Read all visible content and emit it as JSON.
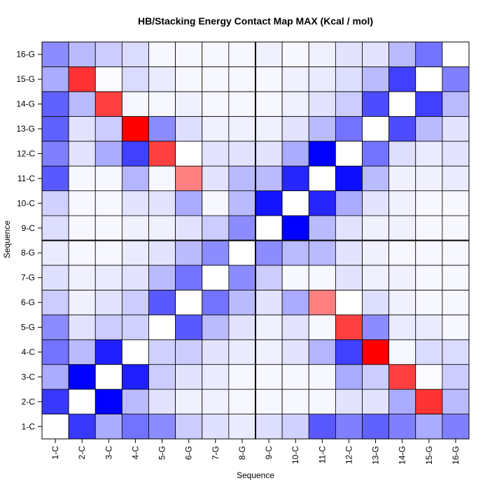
{
  "chart_data": {
    "type": "heatmap",
    "title": "HB/Stacking Energy Contact Map MAX (Kcal / mol)",
    "xlabel": "Sequence",
    "ylabel": "Sequence",
    "x_categories": [
      "1-C",
      "2-C",
      "3-C",
      "4-C",
      "5-G",
      "6-G",
      "7-G",
      "8-G",
      "9-C",
      "10-C",
      "11-C",
      "12-C",
      "13-G",
      "14-G",
      "15-G",
      "16-G"
    ],
    "y_categories": [
      "1-C",
      "2-C",
      "3-C",
      "4-C",
      "5-G",
      "6-G",
      "7-G",
      "8-G",
      "9-C",
      "10-C",
      "11-C",
      "12-C",
      "13-G",
      "14-G",
      "15-G",
      "16-G"
    ],
    "color_scale": {
      "negative": "#0000ff",
      "zero": "#ffffff",
      "positive": "#ff0000"
    },
    "value_range": [
      -1,
      1
    ],
    "grid_dividers_after": [
      8
    ],
    "values": [
      [
        0,
        -0.78,
        -0.33,
        -0.55,
        -0.45,
        -0.2,
        -0.12,
        -0.08,
        -0.13,
        -0.18,
        -0.65,
        -0.5,
        -0.62,
        -0.5,
        -0.33,
        -0.5
      ],
      [
        -0.78,
        0,
        -1.0,
        -0.27,
        -0.11,
        -0.06,
        -0.06,
        -0.03,
        -0.03,
        -0.03,
        -0.03,
        -0.11,
        -0.11,
        -0.33,
        0.8,
        -0.27
      ],
      [
        -0.33,
        -1.0,
        0,
        -0.88,
        -0.2,
        -0.11,
        -0.08,
        -0.03,
        -0.03,
        -0.03,
        -0.03,
        -0.33,
        -0.2,
        0.75,
        -0.02,
        -0.2
      ],
      [
        -0.55,
        -0.27,
        -0.88,
        0,
        -0.18,
        -0.2,
        -0.11,
        -0.08,
        -0.06,
        -0.11,
        -0.29,
        -0.75,
        1.0,
        -0.03,
        -0.14,
        -0.14
      ],
      [
        -0.45,
        -0.11,
        -0.2,
        -0.18,
        0,
        -0.65,
        -0.27,
        -0.11,
        -0.06,
        -0.11,
        -0.03,
        0.75,
        -0.45,
        -0.08,
        -0.08,
        -0.03
      ],
      [
        -0.2,
        -0.06,
        -0.11,
        -0.2,
        -0.65,
        0,
        -0.55,
        -0.27,
        -0.11,
        -0.33,
        0.5,
        0,
        -0.13,
        -0.06,
        -0.03,
        -0.03
      ],
      [
        -0.12,
        -0.06,
        -0.08,
        -0.11,
        -0.27,
        -0.55,
        0,
        -0.45,
        -0.2,
        -0.03,
        -0.03,
        -0.11,
        -0.06,
        -0.06,
        -0.03,
        -0.03
      ],
      [
        -0.08,
        -0.03,
        -0.03,
        -0.08,
        -0.11,
        -0.27,
        -0.45,
        0,
        -0.45,
        -0.27,
        -0.27,
        -0.11,
        -0.06,
        -0.03,
        -0.03,
        -0.03
      ],
      [
        -0.13,
        -0.03,
        -0.03,
        -0.06,
        -0.06,
        -0.11,
        -0.2,
        -0.45,
        0,
        -1.0,
        -0.27,
        -0.11,
        -0.06,
        -0.06,
        -0.03,
        -0.03
      ],
      [
        -0.18,
        -0.03,
        -0.03,
        -0.11,
        -0.11,
        -0.33,
        -0.03,
        -0.27,
        -0.92,
        0,
        -0.85,
        -0.33,
        -0.11,
        -0.06,
        -0.03,
        -0.03
      ],
      [
        -0.65,
        -0.03,
        -0.03,
        -0.29,
        -0.03,
        0.5,
        -0.11,
        -0.27,
        -0.27,
        -0.85,
        0,
        -0.95,
        -0.27,
        -0.06,
        -0.06,
        -0.08
      ],
      [
        -0.5,
        -0.11,
        -0.33,
        -0.75,
        0.75,
        0,
        -0.11,
        -0.11,
        -0.11,
        -0.33,
        -1.0,
        0,
        -0.55,
        -0.13,
        -0.08,
        -0.11
      ],
      [
        -0.62,
        -0.11,
        -0.2,
        1.0,
        -0.45,
        -0.13,
        -0.06,
        -0.06,
        -0.06,
        -0.11,
        -0.27,
        -0.55,
        0,
        -0.7,
        -0.27,
        -0.11
      ],
      [
        -0.62,
        -0.27,
        0.75,
        -0.03,
        -0.03,
        -0.06,
        -0.03,
        -0.03,
        -0.03,
        -0.06,
        -0.11,
        -0.2,
        -0.7,
        0,
        -0.75,
        -0.27
      ],
      [
        -0.33,
        0.8,
        -0.02,
        -0.14,
        -0.08,
        -0.03,
        -0.03,
        -0.03,
        -0.03,
        -0.06,
        -0.08,
        -0.13,
        -0.27,
        -0.75,
        0,
        -0.5
      ],
      [
        -0.45,
        -0.27,
        -0.2,
        -0.14,
        -0.03,
        -0.03,
        -0.03,
        -0.03,
        -0.06,
        -0.03,
        -0.06,
        -0.11,
        -0.11,
        -0.27,
        -0.55,
        0
      ]
    ]
  }
}
